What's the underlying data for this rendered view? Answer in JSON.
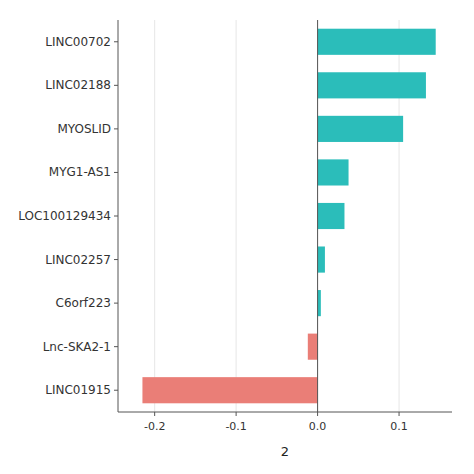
{
  "chart_data": {
    "type": "bar",
    "orientation": "horizontal",
    "categories": [
      "LINC00702",
      "LINC02188",
      "MYOSLID",
      "MYG1-AS1",
      "LOC100129434",
      "LINC02257",
      "C6orf223",
      "Lnc-SKA2-1",
      "LINC01915"
    ],
    "values": [
      0.145,
      0.133,
      0.105,
      0.038,
      0.033,
      0.009,
      0.004,
      -0.012,
      -0.215
    ],
    "colors": [
      "#2BBDBA",
      "#2BBDBA",
      "#2BBDBA",
      "#2BBDBA",
      "#2BBDBA",
      "#2BBDBA",
      "#2BBDBA",
      "#EA7E77",
      "#EA7E77"
    ],
    "xlim": [
      -0.245,
      0.165
    ],
    "xticks": [
      -0.2,
      -0.1,
      {
        "value": 0,
        "label": "0.0"
      },
      0.1
    ],
    "xlabel": "2"
  }
}
